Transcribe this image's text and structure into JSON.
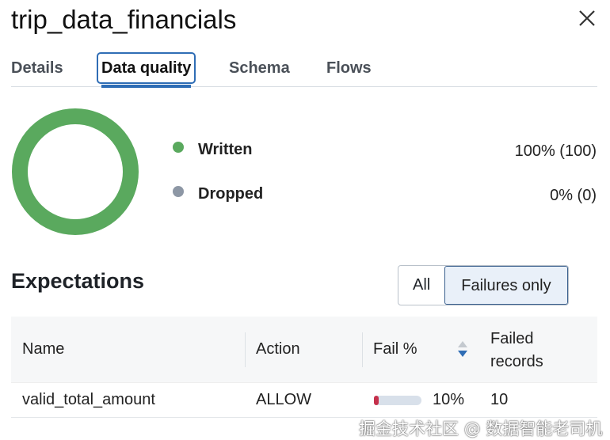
{
  "title": "trip_data_financials",
  "tabs": [
    {
      "label": "Details"
    },
    {
      "label": "Data quality",
      "active": true
    },
    {
      "label": "Schema"
    },
    {
      "label": "Flows"
    }
  ],
  "summary": {
    "written": {
      "label": "Written",
      "value": "100% (100)",
      "color": "#5aa95e",
      "percent": 100
    },
    "dropped": {
      "label": "Dropped",
      "value": "0% (0)",
      "color": "#8d97a5",
      "percent": 0
    }
  },
  "expectations": {
    "heading": "Expectations",
    "filter": {
      "all": "All",
      "failures": "Failures only",
      "selected": "Failures only"
    },
    "columns": {
      "name": "Name",
      "action": "Action",
      "fail": "Fail %",
      "failed1": "Failed",
      "failed2": "records"
    },
    "rows": [
      {
        "name": "valid_total_amount",
        "action": "ALLOW",
        "fail_pct": "10%",
        "fail_fraction": 0.1,
        "failed_records": "10"
      }
    ]
  },
  "watermark": "掘金技术社区 @ 数据智能老司机"
}
